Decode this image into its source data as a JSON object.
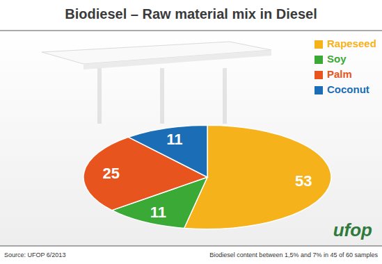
{
  "chart_data": {
    "type": "pie",
    "title": "Biodiesel – Raw material mix in Diesel",
    "categories": [
      "Rapeseed",
      "Soy",
      "Palm",
      "Coconut"
    ],
    "values": [
      53,
      11,
      25,
      11
    ],
    "colors": [
      "#f6b21b",
      "#3aa935",
      "#e8541d",
      "#1b6db5"
    ],
    "legend": "top-right",
    "data_labels": true,
    "annotations": [
      "Source: UFOP 6/2013",
      "Biodiesel content between 1,5% and 7% in 45 of 60 samples",
      "ufop"
    ]
  }
}
